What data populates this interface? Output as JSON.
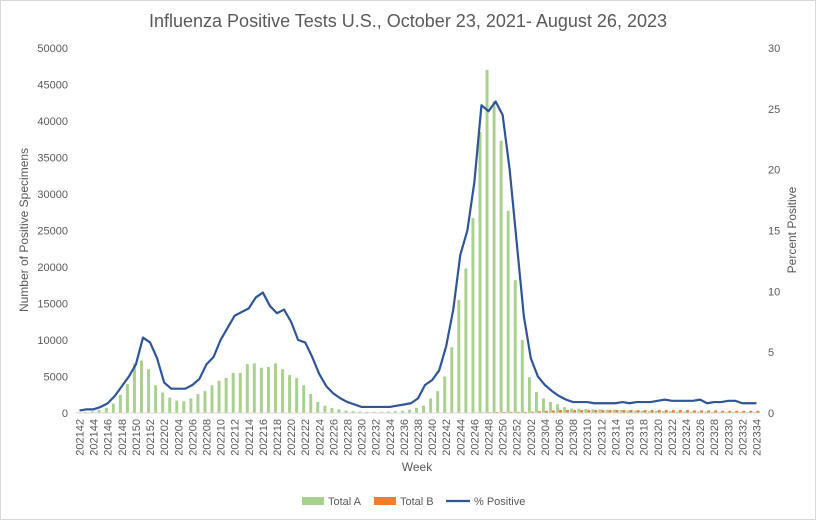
{
  "chart_data": {
    "type": "bar",
    "title": "Influenza Positive Tests U.S., October 23, 2021- August 26, 2023",
    "xlabel": "Week",
    "ylabel": "Number of Positive Specimens",
    "y2label": "Percent Positive",
    "ylim": [
      0,
      50000
    ],
    "y2lim": [
      0,
      30
    ],
    "yticks": [
      "0",
      "5000",
      "10000",
      "15000",
      "20000",
      "25000",
      "30000",
      "35000",
      "40000",
      "45000",
      "50000"
    ],
    "y2ticks": [
      "0",
      "5",
      "10",
      "15",
      "20",
      "25",
      "30"
    ],
    "grid": false,
    "legend_position": "bottom",
    "colors": {
      "total_a": "#a9d18e",
      "total_b": "#ed7d31",
      "pct": "#2f5597"
    },
    "weeks": [
      "202142",
      "202143",
      "202144",
      "202145",
      "202146",
      "202147",
      "202148",
      "202149",
      "202150",
      "202151",
      "202152",
      "202201",
      "202202",
      "202203",
      "202204",
      "202205",
      "202206",
      "202207",
      "202208",
      "202209",
      "202210",
      "202211",
      "202212",
      "202213",
      "202214",
      "202215",
      "202216",
      "202217",
      "202218",
      "202219",
      "202220",
      "202221",
      "202222",
      "202223",
      "202224",
      "202225",
      "202226",
      "202227",
      "202228",
      "202229",
      "202230",
      "202231",
      "202232",
      "202233",
      "202234",
      "202235",
      "202236",
      "202237",
      "202238",
      "202239",
      "202240",
      "202241",
      "202242",
      "202243",
      "202244",
      "202245",
      "202246",
      "202247",
      "202248",
      "202249",
      "202250",
      "202251",
      "202252",
      "202301",
      "202302",
      "202303",
      "202304",
      "202305",
      "202306",
      "202307",
      "202308",
      "202309",
      "202310",
      "202311",
      "202312",
      "202313",
      "202314",
      "202315",
      "202316",
      "202317",
      "202318",
      "202319",
      "202320",
      "202321",
      "202322",
      "202323",
      "202324",
      "202325",
      "202326",
      "202327",
      "202328",
      "202329",
      "202330",
      "202331",
      "202332",
      "202333",
      "202334"
    ],
    "x_tick_labels": [
      "202142",
      "202144",
      "202146",
      "202148",
      "202150",
      "202152",
      "202202",
      "202204",
      "202206",
      "202208",
      "202210",
      "202212",
      "202214",
      "202216",
      "202218",
      "202220",
      "202222",
      "202224",
      "202226",
      "202228",
      "202230",
      "202232",
      "202234",
      "202236",
      "202238",
      "202240",
      "202242",
      "202244",
      "202246",
      "202248",
      "202250",
      "202252",
      "202302",
      "202304",
      "202306",
      "202308",
      "202310",
      "202312",
      "202314",
      "202316",
      "202318",
      "202320",
      "202322",
      "202324",
      "202326",
      "202328",
      "202330",
      "202332",
      "202334"
    ],
    "series": [
      {
        "name": "Total A",
        "axis": "left",
        "kind": "bar",
        "values": [
          100,
          150,
          200,
          400,
          700,
          1300,
          2500,
          4000,
          6800,
          7200,
          6000,
          3800,
          2800,
          2100,
          1700,
          1600,
          2000,
          2600,
          3000,
          3800,
          4400,
          4800,
          5500,
          5500,
          6700,
          6800,
          6200,
          6300,
          6800,
          6000,
          5200,
          4800,
          3800,
          2600,
          1500,
          1000,
          700,
          500,
          350,
          250,
          200,
          150,
          150,
          150,
          200,
          250,
          300,
          450,
          700,
          1000,
          2000,
          3000,
          5000,
          9000,
          15500,
          19800,
          26700,
          38500,
          47000,
          42700,
          37300,
          27700,
          18200,
          10000,
          4900,
          2900,
          2000,
          1500,
          1200,
          800,
          600,
          600,
          550,
          500,
          500,
          450,
          450,
          400,
          350,
          300,
          300,
          250,
          300,
          250,
          250,
          200,
          200,
          180,
          180,
          180,
          150,
          150,
          150,
          150,
          150,
          120,
          120
        ]
      },
      {
        "name": "Total B",
        "axis": "left",
        "kind": "bar",
        "values": [
          20,
          20,
          20,
          20,
          20,
          20,
          20,
          20,
          20,
          20,
          20,
          20,
          20,
          20,
          20,
          20,
          20,
          20,
          20,
          20,
          20,
          20,
          20,
          20,
          20,
          20,
          20,
          20,
          20,
          20,
          20,
          20,
          20,
          20,
          20,
          20,
          20,
          20,
          20,
          20,
          20,
          20,
          20,
          20,
          20,
          20,
          20,
          20,
          20,
          20,
          20,
          20,
          30,
          40,
          50,
          60,
          80,
          100,
          120,
          130,
          140,
          150,
          150,
          150,
          200,
          250,
          300,
          350,
          400,
          400,
          400,
          400,
          400,
          400,
          400,
          400,
          400,
          400,
          400,
          400,
          400,
          400,
          400,
          400,
          400,
          400,
          400,
          350,
          350,
          350,
          350,
          300,
          300,
          300,
          300,
          300,
          300
        ]
      },
      {
        "name": "% Positive",
        "axis": "right",
        "kind": "line",
        "values": [
          0.2,
          0.3,
          0.3,
          0.5,
          0.8,
          1.4,
          2.2,
          3.0,
          4.0,
          6.2,
          5.8,
          4.5,
          2.5,
          2.0,
          2.0,
          2.0,
          2.3,
          2.8,
          4.0,
          4.6,
          6.0,
          7.0,
          8.0,
          8.3,
          8.6,
          9.5,
          9.9,
          8.8,
          8.2,
          8.5,
          7.5,
          6.0,
          5.8,
          4.6,
          3.2,
          2.2,
          1.6,
          1.2,
          0.9,
          0.7,
          0.5,
          0.5,
          0.5,
          0.5,
          0.5,
          0.6,
          0.7,
          0.8,
          1.2,
          2.3,
          2.7,
          3.5,
          5.5,
          8.5,
          13.0,
          15.0,
          19.0,
          25.3,
          24.8,
          25.6,
          24.5,
          20.0,
          14.0,
          8.0,
          4.5,
          3.0,
          2.3,
          1.8,
          1.4,
          1.1,
          0.9,
          0.9,
          0.9,
          0.8,
          0.8,
          0.8,
          0.8,
          0.9,
          0.8,
          0.9,
          0.9,
          0.9,
          1.0,
          1.1,
          1.0,
          1.0,
          1.0,
          1.0,
          1.1,
          0.8,
          0.9,
          0.9,
          1.0,
          1.0,
          0.8,
          0.8,
          0.8
        ]
      }
    ]
  }
}
